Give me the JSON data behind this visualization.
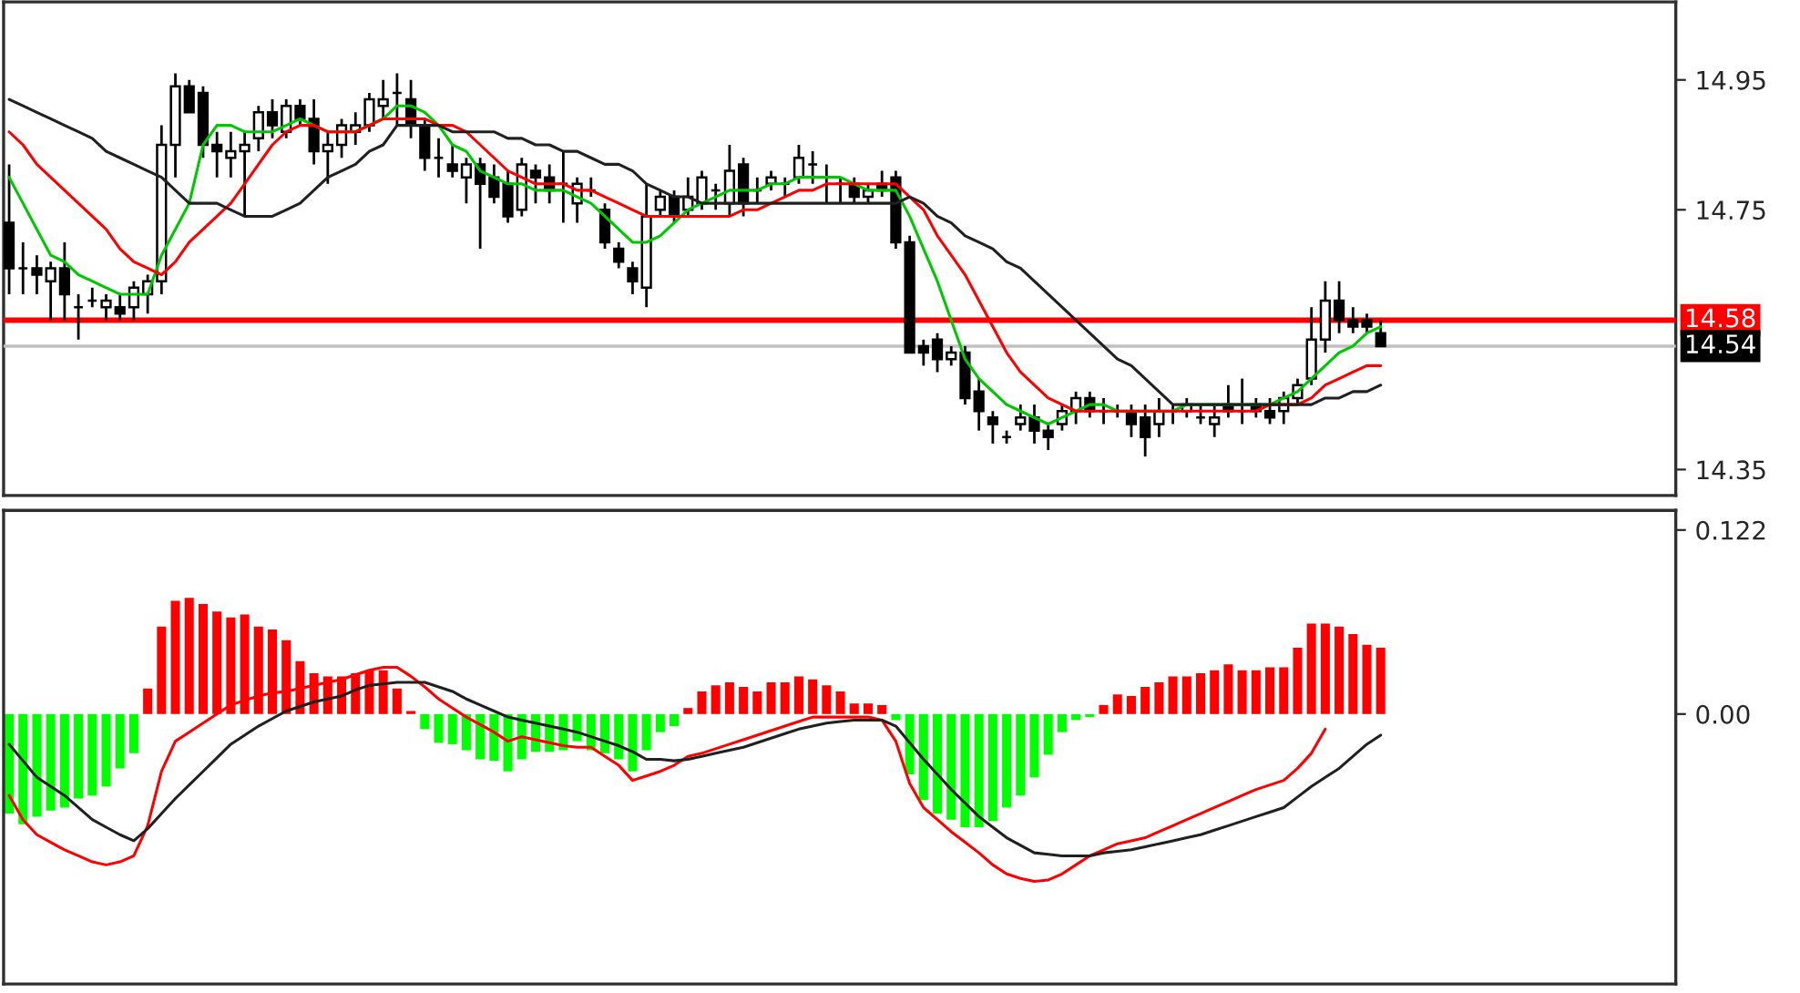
{
  "chart_data": [
    {
      "type": "candlestick",
      "categories": [
        null,
        null,
        null,
        null,
        null,
        null,
        null,
        null,
        null,
        null,
        null,
        null,
        null,
        null,
        null,
        null,
        null,
        null,
        null,
        null,
        null,
        null,
        null,
        null,
        null,
        null,
        null,
        null,
        null,
        null,
        null,
        null,
        null,
        null,
        null,
        null,
        null,
        null,
        null,
        null,
        null,
        null,
        null,
        null,
        null,
        null,
        null,
        null,
        null,
        null,
        null,
        null,
        null,
        null,
        null,
        null,
        null,
        null,
        null,
        null,
        null,
        null,
        null,
        null,
        null,
        null,
        null,
        null,
        null,
        null,
        null,
        null,
        null,
        null,
        null,
        null,
        null,
        null,
        null,
        null,
        null,
        null,
        null,
        null,
        null,
        null,
        null,
        null,
        null,
        null,
        null,
        null,
        null,
        null,
        null,
        null,
        null,
        null,
        null,
        null
      ],
      "ohlc": [
        [
          14.73,
          14.82,
          14.62,
          14.66
        ],
        [
          14.66,
          14.7,
          14.62,
          14.66
        ],
        [
          14.66,
          14.68,
          14.62,
          14.65
        ],
        [
          14.64,
          14.67,
          14.58,
          14.66
        ],
        [
          14.66,
          14.7,
          14.58,
          14.62
        ],
        [
          14.6,
          14.62,
          14.55,
          14.6
        ],
        [
          14.61,
          14.63,
          14.6,
          14.61
        ],
        [
          14.6,
          14.62,
          14.58,
          14.61
        ],
        [
          14.6,
          14.62,
          14.58,
          14.59
        ],
        [
          14.6,
          14.64,
          14.58,
          14.63
        ],
        [
          14.62,
          14.65,
          14.59,
          14.64
        ],
        [
          14.64,
          14.88,
          14.62,
          14.85
        ],
        [
          14.85,
          14.96,
          14.8,
          14.94
        ],
        [
          14.94,
          14.95,
          14.9,
          14.9
        ],
        [
          14.93,
          14.94,
          14.83,
          14.85
        ],
        [
          14.85,
          14.87,
          14.8,
          14.84
        ],
        [
          14.83,
          14.87,
          14.8,
          14.84
        ],
        [
          14.84,
          14.87,
          14.74,
          14.85
        ],
        [
          14.86,
          14.91,
          14.84,
          14.9
        ],
        [
          14.9,
          14.92,
          14.86,
          14.88
        ],
        [
          14.87,
          14.92,
          14.86,
          14.91
        ],
        [
          14.91,
          14.92,
          14.88,
          14.89
        ],
        [
          14.89,
          14.92,
          14.82,
          14.84
        ],
        [
          14.84,
          14.87,
          14.79,
          14.85
        ],
        [
          14.85,
          14.89,
          14.83,
          14.88
        ],
        [
          14.87,
          14.9,
          14.85,
          14.88
        ],
        [
          14.88,
          14.93,
          14.87,
          14.92
        ],
        [
          14.91,
          14.95,
          14.89,
          14.92
        ],
        [
          14.93,
          14.96,
          14.88,
          14.93
        ],
        [
          14.92,
          14.95,
          14.86,
          14.88
        ],
        [
          14.88,
          14.89,
          14.81,
          14.83
        ],
        [
          14.83,
          14.86,
          14.8,
          14.83
        ],
        [
          14.82,
          14.85,
          14.8,
          14.81
        ],
        [
          14.8,
          14.83,
          14.76,
          14.82
        ],
        [
          14.82,
          14.83,
          14.69,
          14.79
        ],
        [
          14.8,
          14.82,
          14.76,
          14.77
        ],
        [
          14.79,
          14.81,
          14.73,
          14.74
        ],
        [
          14.75,
          14.83,
          14.74,
          14.82
        ],
        [
          14.81,
          14.82,
          14.76,
          14.8
        ],
        [
          14.8,
          14.82,
          14.76,
          14.78
        ],
        [
          14.79,
          14.84,
          14.73,
          14.79
        ],
        [
          14.76,
          14.8,
          14.73,
          14.79
        ],
        [
          14.78,
          14.8,
          14.77,
          14.78
        ],
        [
          14.75,
          14.76,
          14.69,
          14.7
        ],
        [
          14.69,
          14.7,
          14.66,
          14.67
        ],
        [
          14.66,
          14.67,
          14.62,
          14.64
        ],
        [
          14.63,
          14.79,
          14.6,
          14.74
        ],
        [
          14.75,
          14.78,
          14.74,
          14.77
        ],
        [
          14.77,
          14.78,
          14.73,
          14.74
        ],
        [
          14.75,
          14.8,
          14.74,
          14.77
        ],
        [
          14.76,
          14.81,
          14.75,
          14.8
        ],
        [
          14.78,
          14.79,
          14.75,
          14.78
        ],
        [
          14.76,
          14.85,
          14.74,
          14.81
        ],
        [
          14.82,
          14.83,
          14.74,
          14.76
        ],
        [
          14.78,
          14.8,
          14.76,
          14.78
        ],
        [
          14.79,
          14.81,
          14.78,
          14.8
        ],
        [
          14.79,
          14.8,
          14.77,
          14.79
        ],
        [
          14.8,
          14.85,
          14.79,
          14.83
        ],
        [
          14.82,
          14.84,
          14.79,
          14.82
        ],
        [
          14.8,
          14.82,
          14.76,
          14.8
        ],
        [
          14.79,
          14.8,
          14.76,
          14.79
        ],
        [
          14.79,
          14.8,
          14.76,
          14.77
        ],
        [
          14.77,
          14.79,
          14.76,
          14.78
        ],
        [
          14.79,
          14.81,
          14.77,
          14.78
        ],
        [
          14.8,
          14.81,
          14.69,
          14.7
        ],
        [
          14.7,
          14.71,
          14.53,
          14.53
        ],
        [
          14.54,
          14.55,
          14.51,
          14.53
        ],
        [
          14.55,
          14.56,
          14.5,
          14.52
        ],
        [
          14.52,
          14.54,
          14.51,
          14.53
        ],
        [
          14.53,
          14.54,
          14.45,
          14.46
        ],
        [
          14.47,
          14.49,
          14.41,
          14.44
        ],
        [
          14.43,
          14.44,
          14.39,
          14.42
        ],
        [
          14.4,
          14.41,
          14.39,
          14.4
        ],
        [
          14.42,
          14.45,
          14.41,
          14.43
        ],
        [
          14.43,
          14.45,
          14.39,
          14.41
        ],
        [
          14.41,
          14.42,
          14.38,
          14.4
        ],
        [
          14.42,
          14.45,
          14.41,
          14.44
        ],
        [
          14.44,
          14.47,
          14.42,
          14.46
        ],
        [
          14.46,
          14.47,
          14.43,
          14.44
        ],
        [
          14.44,
          14.46,
          14.42,
          14.44
        ],
        [
          14.44,
          14.45,
          14.43,
          14.44
        ],
        [
          14.44,
          14.45,
          14.4,
          14.42
        ],
        [
          14.43,
          14.45,
          14.37,
          14.4
        ],
        [
          14.42,
          14.46,
          14.4,
          14.44
        ],
        [
          14.44,
          14.45,
          14.42,
          14.44
        ],
        [
          14.44,
          14.46,
          14.43,
          14.45
        ],
        [
          14.43,
          14.45,
          14.42,
          14.43
        ],
        [
          14.42,
          14.45,
          14.4,
          14.43
        ],
        [
          14.45,
          14.48,
          14.43,
          14.44
        ],
        [
          14.44,
          14.49,
          14.42,
          14.44
        ],
        [
          14.45,
          14.46,
          14.43,
          14.44
        ],
        [
          14.44,
          14.46,
          14.42,
          14.43
        ],
        [
          14.44,
          14.47,
          14.42,
          14.46
        ],
        [
          14.46,
          14.49,
          14.45,
          14.48
        ],
        [
          14.49,
          14.6,
          14.48,
          14.55
        ],
        [
          14.55,
          14.64,
          14.53,
          14.61
        ],
        [
          14.61,
          14.64,
          14.56,
          14.58
        ],
        [
          14.58,
          14.6,
          14.56,
          14.57
        ],
        [
          14.58,
          14.59,
          14.56,
          14.57
        ],
        [
          14.56,
          14.58,
          14.54,
          14.54
        ]
      ],
      "series": [
        {
          "type": "line",
          "color": "#00c800",
          "values": [
            14.8,
            14.76,
            14.72,
            14.68,
            14.67,
            14.65,
            14.64,
            14.63,
            14.62,
            14.62,
            14.62,
            14.68,
            14.72,
            14.76,
            14.85,
            14.88,
            14.88,
            14.87,
            14.87,
            14.87,
            14.88,
            14.89,
            14.88,
            14.87,
            14.87,
            14.87,
            14.88,
            14.89,
            14.91,
            14.91,
            14.9,
            14.88,
            14.85,
            14.84,
            14.81,
            14.8,
            14.79,
            14.79,
            14.78,
            14.78,
            14.78,
            14.77,
            14.76,
            14.74,
            14.72,
            14.7,
            14.7,
            14.71,
            14.73,
            14.75,
            14.76,
            14.77,
            14.78,
            14.78,
            14.78,
            14.79,
            14.79,
            14.8,
            14.8,
            14.8,
            14.8,
            14.79,
            14.78,
            14.78,
            14.78,
            14.74,
            14.69,
            14.64,
            14.58,
            14.52,
            14.49,
            14.47,
            14.45,
            14.44,
            14.43,
            14.42,
            14.43,
            14.44,
            14.45,
            14.45,
            14.44,
            14.44,
            14.44,
            14.44,
            14.44,
            14.45,
            14.45,
            14.45,
            14.45,
            14.45,
            14.45,
            14.45,
            14.46,
            14.47,
            14.49,
            14.51,
            14.53,
            14.54,
            14.56,
            14.57
          ]
        },
        {
          "type": "line",
          "color": "#ff0000",
          "values": [
            14.87,
            14.85,
            14.82,
            14.8,
            14.78,
            14.76,
            14.74,
            14.72,
            14.69,
            14.67,
            14.66,
            14.65,
            14.67,
            14.7,
            14.72,
            14.74,
            14.76,
            14.79,
            14.82,
            14.85,
            14.87,
            14.88,
            14.88,
            14.87,
            14.87,
            14.87,
            14.88,
            14.89,
            14.89,
            14.89,
            14.89,
            14.88,
            14.88,
            14.87,
            14.85,
            14.83,
            14.81,
            14.8,
            14.79,
            14.79,
            14.79,
            14.78,
            14.78,
            14.77,
            14.76,
            14.75,
            14.74,
            14.74,
            14.74,
            14.74,
            14.74,
            14.74,
            14.74,
            14.75,
            14.75,
            14.76,
            14.77,
            14.78,
            14.78,
            14.79,
            14.79,
            14.79,
            14.79,
            14.79,
            14.79,
            14.77,
            14.75,
            14.71,
            14.68,
            14.65,
            14.61,
            14.57,
            14.53,
            14.5,
            14.48,
            14.46,
            14.45,
            14.44,
            14.44,
            14.44,
            14.44,
            14.44,
            14.44,
            14.44,
            14.44,
            14.44,
            14.44,
            14.44,
            14.44,
            14.44,
            14.44,
            14.45,
            14.45,
            14.45,
            14.46,
            14.48,
            14.49,
            14.5,
            14.51,
            14.51
          ]
        },
        {
          "type": "line",
          "color": "#202020",
          "values": [
            14.92,
            14.91,
            14.9,
            14.89,
            14.88,
            14.87,
            14.86,
            14.84,
            14.83,
            14.82,
            14.81,
            14.8,
            14.78,
            14.76,
            14.76,
            14.76,
            14.75,
            14.74,
            14.74,
            14.74,
            14.75,
            14.76,
            14.78,
            14.8,
            14.81,
            14.82,
            14.84,
            14.85,
            14.88,
            14.88,
            14.88,
            14.88,
            14.87,
            14.87,
            14.87,
            14.87,
            14.86,
            14.86,
            14.85,
            14.85,
            14.84,
            14.84,
            14.83,
            14.82,
            14.82,
            14.81,
            14.79,
            14.78,
            14.77,
            14.77,
            14.76,
            14.76,
            14.76,
            14.76,
            14.76,
            14.76,
            14.76,
            14.76,
            14.76,
            14.76,
            14.76,
            14.76,
            14.76,
            14.76,
            14.76,
            14.77,
            14.76,
            14.74,
            14.73,
            14.71,
            14.7,
            14.69,
            14.67,
            14.66,
            14.64,
            14.62,
            14.6,
            14.58,
            14.56,
            14.54,
            14.52,
            14.51,
            14.49,
            14.47,
            14.45,
            14.45,
            14.45,
            14.45,
            14.45,
            14.45,
            14.45,
            14.45,
            14.45,
            14.45,
            14.45,
            14.46,
            14.46,
            14.47,
            14.47,
            14.48
          ]
        }
      ],
      "ylim": [
        14.31,
        15.07
      ],
      "yticks": [
        14.35,
        14.75,
        14.95
      ],
      "ref_lines": [
        {
          "axis": "y",
          "value": 14.58,
          "label": "14.58",
          "color": "#ff0000"
        },
        {
          "axis": "y",
          "value": 14.54,
          "label": "14.54",
          "color": "#c0c0c0"
        }
      ],
      "tick_labels": "y"
    },
    {
      "type": "bar",
      "categories": [
        null,
        null,
        null,
        null,
        null,
        null,
        null,
        null,
        null,
        null,
        null,
        null,
        null,
        null,
        null,
        null,
        null,
        null,
        null,
        null,
        null,
        null,
        null,
        null,
        null,
        null,
        null,
        null,
        null,
        null,
        null,
        null,
        null,
        null,
        null,
        null,
        null,
        null,
        null,
        null,
        null,
        null,
        null,
        null,
        null,
        null,
        null,
        null,
        null,
        null,
        null,
        null,
        null,
        null,
        null,
        null,
        null,
        null,
        null,
        null,
        null,
        null,
        null,
        null,
        null,
        null,
        null,
        null,
        null,
        null,
        null,
        null,
        null,
        null,
        null,
        null,
        null,
        null,
        null,
        null,
        null,
        null,
        null,
        null,
        null,
        null,
        null,
        null,
        null,
        null,
        null,
        null,
        null,
        null,
        null,
        null,
        null,
        null,
        null,
        null
      ],
      "values": [
        -0.066,
        -0.073,
        -0.068,
        -0.064,
        -0.062,
        -0.056,
        -0.054,
        -0.048,
        -0.036,
        -0.026,
        0.017,
        0.058,
        0.075,
        0.077,
        0.073,
        0.068,
        0.064,
        0.066,
        0.058,
        0.056,
        0.049,
        0.035,
        0.027,
        0.025,
        0.025,
        0.027,
        0.029,
        0.029,
        0.017,
        0.002,
        -0.01,
        -0.019,
        -0.02,
        -0.024,
        -0.03,
        -0.031,
        -0.038,
        -0.03,
        -0.025,
        -0.025,
        -0.024,
        -0.018,
        -0.024,
        -0.026,
        -0.03,
        -0.038,
        -0.024,
        -0.012,
        -0.008,
        0.004,
        0.015,
        0.019,
        0.021,
        0.018,
        0.015,
        0.021,
        0.021,
        0.025,
        0.023,
        0.019,
        0.015,
        0.007,
        0.007,
        0.006,
        -0.004,
        -0.04,
        -0.057,
        -0.066,
        -0.07,
        -0.075,
        -0.075,
        -0.071,
        -0.062,
        -0.054,
        -0.042,
        -0.027,
        -0.012,
        -0.004,
        -0.002,
        0.006,
        0.013,
        0.012,
        0.018,
        0.021,
        0.025,
        0.025,
        0.027,
        0.029,
        0.033,
        0.029,
        0.029,
        0.031,
        0.031,
        0.044,
        0.06,
        0.06,
        0.058,
        0.053,
        0.046,
        0.044
      ],
      "colors": [
        "#00ff00",
        "#00ff00",
        "#00ff00",
        "#00ff00",
        "#00ff00",
        "#00ff00",
        "#00ff00",
        "#00ff00",
        "#00ff00",
        "#00ff00",
        "#ff0000",
        "#ff0000",
        "#ff0000",
        "#ff0000",
        "#ff0000",
        "#ff0000",
        "#ff0000",
        "#ff0000",
        "#ff0000",
        "#ff0000",
        "#ff0000",
        "#ff0000",
        "#ff0000",
        "#ff0000",
        "#ff0000",
        "#ff0000",
        "#ff0000",
        "#ff0000",
        "#ff0000",
        "#ff0000",
        "#00ff00",
        "#00ff00",
        "#00ff00",
        "#00ff00",
        "#00ff00",
        "#00ff00",
        "#00ff00",
        "#00ff00",
        "#00ff00",
        "#00ff00",
        "#00ff00",
        "#00ff00",
        "#00ff00",
        "#00ff00",
        "#00ff00",
        "#00ff00",
        "#00ff00",
        "#00ff00",
        "#00ff00",
        "#ff0000",
        "#ff0000",
        "#ff0000",
        "#ff0000",
        "#ff0000",
        "#ff0000",
        "#ff0000",
        "#ff0000",
        "#ff0000",
        "#ff0000",
        "#ff0000",
        "#ff0000",
        "#ff0000",
        "#ff0000",
        "#ff0000",
        "#00ff00",
        "#00ff00",
        "#00ff00",
        "#00ff00",
        "#00ff00",
        "#00ff00",
        "#00ff00",
        "#00ff00",
        "#00ff00",
        "#00ff00",
        "#00ff00",
        "#00ff00",
        "#00ff00",
        "#00ff00",
        "#00ff00",
        "#ff0000",
        "#ff0000",
        "#ff0000",
        "#ff0000",
        "#ff0000",
        "#ff0000",
        "#ff0000",
        "#ff0000",
        "#ff0000",
        "#ff0000",
        "#ff0000",
        "#ff0000",
        "#ff0000",
        "#ff0000",
        "#ff0000",
        "#ff0000",
        "#ff0000",
        "#ff0000",
        "#ff0000",
        "#ff0000",
        "#ff0000"
      ],
      "series": [
        {
          "type": "line",
          "color": "#ff0000",
          "values": [
            -0.054,
            -0.07,
            -0.08,
            -0.085,
            -0.09,
            -0.094,
            -0.098,
            -0.1,
            -0.098,
            -0.094,
            -0.074,
            -0.038,
            -0.018,
            -0.012,
            -0.006,
            0.0,
            0.006,
            0.009,
            0.012,
            0.014,
            0.015,
            0.017,
            0.019,
            0.021,
            0.023,
            0.026,
            0.029,
            0.031,
            0.031,
            0.025,
            0.018,
            0.01,
            0.004,
            -0.002,
            -0.007,
            -0.012,
            -0.018,
            -0.015,
            -0.017,
            -0.019,
            -0.021,
            -0.022,
            -0.022,
            -0.028,
            -0.034,
            -0.044,
            -0.041,
            -0.038,
            -0.034,
            -0.028,
            -0.026,
            -0.023,
            -0.02,
            -0.017,
            -0.014,
            -0.011,
            -0.008,
            -0.005,
            -0.002,
            -0.002,
            -0.002,
            -0.002,
            -0.002,
            -0.004,
            -0.018,
            -0.046,
            -0.062,
            -0.07,
            -0.078,
            -0.085,
            -0.092,
            -0.1,
            -0.106,
            -0.109,
            -0.111,
            -0.11,
            -0.106,
            -0.1,
            -0.094,
            -0.09,
            -0.086,
            -0.084,
            -0.082,
            -0.078,
            -0.074,
            -0.07,
            -0.066,
            -0.062,
            -0.058,
            -0.054,
            -0.05,
            -0.047,
            -0.044,
            -0.036,
            -0.026,
            -0.01,
            null,
            null,
            null,
            null
          ]
        },
        {
          "type": "line",
          "color": "#202020",
          "values": [
            -0.02,
            -0.031,
            -0.042,
            -0.048,
            -0.054,
            -0.062,
            -0.07,
            -0.075,
            -0.08,
            -0.084,
            -0.076,
            -0.066,
            -0.056,
            -0.047,
            -0.038,
            -0.029,
            -0.02,
            -0.014,
            -0.008,
            -0.003,
            0.002,
            0.005,
            0.008,
            0.01,
            0.012,
            0.016,
            0.019,
            0.02,
            0.021,
            0.021,
            0.021,
            0.018,
            0.015,
            0.01,
            0.006,
            0.002,
            -0.002,
            -0.004,
            -0.006,
            -0.008,
            -0.01,
            -0.012,
            -0.015,
            -0.018,
            -0.021,
            -0.025,
            -0.03,
            -0.03,
            -0.031,
            -0.03,
            -0.028,
            -0.026,
            -0.024,
            -0.022,
            -0.019,
            -0.016,
            -0.013,
            -0.01,
            -0.008,
            -0.006,
            -0.005,
            -0.004,
            -0.004,
            -0.004,
            -0.008,
            -0.019,
            -0.03,
            -0.04,
            -0.05,
            -0.059,
            -0.068,
            -0.075,
            -0.082,
            -0.087,
            -0.092,
            -0.093,
            -0.094,
            -0.094,
            -0.094,
            -0.092,
            -0.091,
            -0.09,
            -0.088,
            -0.086,
            -0.084,
            -0.082,
            -0.08,
            -0.077,
            -0.074,
            -0.071,
            -0.068,
            -0.065,
            -0.062,
            -0.055,
            -0.048,
            -0.042,
            -0.036,
            -0.028,
            -0.02,
            -0.014
          ]
        }
      ],
      "ylim": [
        -0.179,
        0.135
      ],
      "yticks": [
        {
          "value": 0,
          "label": "0.00"
        },
        0.122
      ],
      "tick_labels": "y"
    }
  ]
}
